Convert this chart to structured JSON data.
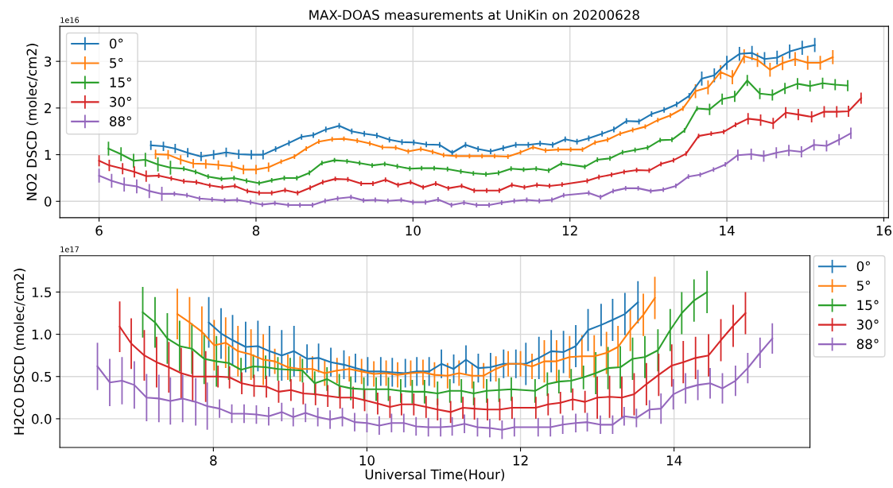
{
  "chart_data": [
    {
      "type": "line",
      "title": "MAX-DOAS measurements at UniKin on 20200628",
      "ylabel": "NO2 DSCD (molec/cm2)",
      "annotations": [
        "1e16"
      ],
      "xlim": [
        5.5,
        16.06
      ],
      "xticks": [
        6,
        8,
        10,
        12,
        14,
        16
      ],
      "ylim": [
        -0.35,
        3.75
      ],
      "yticks": [
        0,
        1,
        2,
        3
      ],
      "grid": true,
      "legend": "top left",
      "marker": "none",
      "line_style": "solid",
      "series": [
        {
          "name": "0°",
          "color": "#1f77b4",
          "x": [
            6.66,
            6.82,
            6.97,
            7.13,
            7.3,
            7.46,
            7.62,
            7.78,
            7.94,
            8.09,
            8.25,
            8.42,
            8.58,
            8.73,
            8.89,
            9.06,
            9.22,
            9.38,
            9.54,
            9.7,
            9.86,
            10.01,
            10.17,
            10.34,
            10.5,
            10.67,
            10.83,
            10.99,
            11.15,
            11.31,
            11.47,
            11.62,
            11.78,
            11.94,
            12.09,
            12.24,
            12.41,
            12.56,
            12.72,
            12.88,
            13.04,
            13.2,
            13.36,
            13.52,
            13.68,
            13.84,
            14.0,
            14.16,
            14.32,
            14.48,
            14.64,
            14.8,
            14.96,
            15.12
          ],
          "values": [
            1.2,
            1.18,
            1.13,
            1.04,
            0.96,
            1.0,
            1.05,
            1.01,
            1.0,
            1.0,
            1.12,
            1.25,
            1.38,
            1.42,
            1.54,
            1.62,
            1.5,
            1.45,
            1.41,
            1.32,
            1.27,
            1.26,
            1.22,
            1.21,
            1.04,
            1.21,
            1.12,
            1.07,
            1.14,
            1.21,
            1.21,
            1.24,
            1.21,
            1.33,
            1.28,
            1.35,
            1.45,
            1.54,
            1.72,
            1.71,
            1.87,
            1.96,
            2.08,
            2.26,
            2.63,
            2.7,
            2.97,
            3.16,
            3.18,
            3.05,
            3.08,
            3.21,
            3.29,
            3.35
          ],
          "errors": [
            0.1,
            0.1,
            0.1,
            0.1,
            0.1,
            0.1,
            0.1,
            0.1,
            0.1,
            0.1,
            0.06,
            0.06,
            0.06,
            0.06,
            0.06,
            0.06,
            0.06,
            0.06,
            0.06,
            0.06,
            0.06,
            0.06,
            0.06,
            0.06,
            0.06,
            0.06,
            0.06,
            0.06,
            0.06,
            0.06,
            0.06,
            0.06,
            0.06,
            0.06,
            0.06,
            0.06,
            0.06,
            0.06,
            0.06,
            0.06,
            0.06,
            0.06,
            0.06,
            0.06,
            0.15,
            0.15,
            0.15,
            0.15,
            0.15,
            0.15,
            0.15,
            0.15,
            0.15,
            0.15
          ]
        },
        {
          "name": "5°",
          "color": "#ff7f0e",
          "x": [
            6.72,
            6.88,
            7.04,
            7.2,
            7.36,
            7.52,
            7.69,
            7.84,
            8.0,
            8.16,
            8.32,
            8.49,
            8.64,
            8.8,
            8.97,
            9.12,
            9.29,
            9.45,
            9.61,
            9.78,
            9.94,
            10.1,
            10.25,
            10.39,
            10.55,
            10.72,
            10.88,
            11.04,
            11.21,
            11.37,
            11.53,
            11.69,
            11.85,
            12.01,
            12.16,
            12.32,
            12.48,
            12.64,
            12.8,
            12.96,
            13.12,
            13.28,
            13.44,
            13.6,
            13.76,
            13.92,
            14.07,
            14.22,
            14.39,
            14.55,
            14.71,
            14.87,
            15.03,
            15.19,
            15.35
          ],
          "values": [
            1.01,
            1.0,
            0.89,
            0.81,
            0.8,
            0.78,
            0.75,
            0.68,
            0.68,
            0.73,
            0.85,
            0.96,
            1.13,
            1.28,
            1.33,
            1.34,
            1.3,
            1.24,
            1.16,
            1.15,
            1.07,
            1.12,
            1.06,
            0.99,
            0.97,
            0.97,
            0.97,
            0.97,
            0.96,
            1.05,
            1.16,
            1.09,
            1.11,
            1.11,
            1.11,
            1.26,
            1.32,
            1.45,
            1.53,
            1.6,
            1.74,
            1.84,
            1.99,
            2.36,
            2.44,
            2.77,
            2.66,
            3.11,
            3.03,
            2.82,
            2.96,
            3.05,
            2.97,
            2.97,
            3.09
          ],
          "errors": [
            0.1,
            0.1,
            0.1,
            0.1,
            0.1,
            0.1,
            0.1,
            0.1,
            0.1,
            0.1,
            0.05,
            0.05,
            0.05,
            0.05,
            0.05,
            0.05,
            0.05,
            0.05,
            0.05,
            0.05,
            0.05,
            0.05,
            0.05,
            0.05,
            0.05,
            0.05,
            0.05,
            0.05,
            0.05,
            0.05,
            0.05,
            0.05,
            0.05,
            0.05,
            0.05,
            0.05,
            0.05,
            0.05,
            0.05,
            0.05,
            0.05,
            0.05,
            0.05,
            0.15,
            0.15,
            0.15,
            0.15,
            0.15,
            0.15,
            0.15,
            0.15,
            0.15,
            0.15,
            0.15,
            0.15
          ]
        },
        {
          "name": "15°",
          "color": "#2ca02c",
          "x": [
            6.12,
            6.28,
            6.44,
            6.59,
            6.75,
            6.91,
            7.08,
            7.23,
            7.39,
            7.56,
            7.72,
            7.88,
            8.04,
            8.2,
            8.36,
            8.52,
            8.68,
            8.84,
            9.0,
            9.16,
            9.32,
            9.48,
            9.64,
            9.8,
            9.96,
            10.11,
            10.27,
            10.44,
            10.61,
            10.77,
            10.93,
            11.09,
            11.25,
            11.41,
            11.57,
            11.73,
            11.89,
            12.19,
            12.35,
            12.51,
            12.67,
            12.83,
            12.99,
            13.15,
            13.3,
            13.46,
            13.62,
            13.78,
            13.94,
            14.1,
            14.26,
            14.42,
            14.58,
            14.74,
            14.9,
            15.06,
            15.22,
            15.38,
            15.54
          ],
          "values": [
            1.13,
            1.01,
            0.87,
            0.89,
            0.79,
            0.72,
            0.7,
            0.63,
            0.53,
            0.48,
            0.5,
            0.44,
            0.39,
            0.45,
            0.5,
            0.5,
            0.61,
            0.82,
            0.88,
            0.86,
            0.82,
            0.77,
            0.8,
            0.75,
            0.7,
            0.71,
            0.71,
            0.69,
            0.64,
            0.6,
            0.58,
            0.61,
            0.7,
            0.68,
            0.7,
            0.66,
            0.81,
            0.74,
            0.89,
            0.92,
            1.05,
            1.1,
            1.15,
            1.31,
            1.32,
            1.52,
            1.99,
            1.97,
            2.19,
            2.25,
            2.59,
            2.31,
            2.28,
            2.42,
            2.52,
            2.47,
            2.53,
            2.5,
            2.48
          ],
          "errors": [
            0.15,
            0.15,
            0.15,
            0.15,
            0.15,
            0.15,
            0.05,
            0.05,
            0.05,
            0.05,
            0.05,
            0.05,
            0.05,
            0.05,
            0.05,
            0.05,
            0.05,
            0.05,
            0.05,
            0.05,
            0.05,
            0.05,
            0.05,
            0.05,
            0.05,
            0.05,
            0.05,
            0.05,
            0.05,
            0.05,
            0.05,
            0.05,
            0.05,
            0.05,
            0.05,
            0.05,
            0.05,
            0.05,
            0.05,
            0.05,
            0.05,
            0.05,
            0.05,
            0.05,
            0.05,
            0.05,
            0.05,
            0.12,
            0.12,
            0.12,
            0.12,
            0.12,
            0.12,
            0.12,
            0.12,
            0.12,
            0.12,
            0.12,
            0.12
          ]
        },
        {
          "name": "30°",
          "color": "#d62728",
          "x": [
            6.0,
            6.13,
            6.3,
            6.45,
            6.6,
            6.76,
            6.92,
            7.08,
            7.24,
            7.41,
            7.57,
            7.73,
            7.89,
            8.04,
            8.2,
            8.37,
            8.53,
            8.69,
            8.85,
            9.01,
            9.17,
            9.34,
            9.49,
            9.65,
            9.81,
            9.97,
            10.13,
            10.29,
            10.45,
            10.62,
            10.78,
            10.94,
            11.1,
            11.26,
            11.42,
            11.58,
            11.74,
            11.9,
            12.22,
            12.37,
            12.53,
            12.69,
            12.85,
            13.01,
            13.16,
            13.32,
            13.48,
            13.64,
            13.8,
            13.96,
            14.11,
            14.27,
            14.43,
            14.59,
            14.75,
            14.91,
            15.08,
            15.24,
            15.4,
            15.55,
            15.71
          ],
          "values": [
            0.87,
            0.77,
            0.7,
            0.63,
            0.54,
            0.55,
            0.49,
            0.43,
            0.41,
            0.34,
            0.3,
            0.33,
            0.22,
            0.18,
            0.18,
            0.24,
            0.18,
            0.29,
            0.41,
            0.48,
            0.47,
            0.38,
            0.38,
            0.46,
            0.35,
            0.41,
            0.3,
            0.38,
            0.28,
            0.33,
            0.23,
            0.23,
            0.23,
            0.35,
            0.3,
            0.35,
            0.33,
            0.36,
            0.44,
            0.52,
            0.57,
            0.63,
            0.67,
            0.66,
            0.8,
            0.88,
            1.02,
            1.4,
            1.45,
            1.49,
            1.64,
            1.77,
            1.74,
            1.67,
            1.9,
            1.86,
            1.81,
            1.92,
            1.92,
            1.93,
            2.21
          ],
          "errors": [
            0.12,
            0.12,
            0.12,
            0.12,
            0.12,
            0.05,
            0.05,
            0.05,
            0.05,
            0.05,
            0.05,
            0.05,
            0.05,
            0.05,
            0.05,
            0.05,
            0.05,
            0.05,
            0.05,
            0.05,
            0.05,
            0.05,
            0.05,
            0.05,
            0.05,
            0.05,
            0.05,
            0.05,
            0.05,
            0.05,
            0.05,
            0.05,
            0.05,
            0.05,
            0.05,
            0.05,
            0.05,
            0.05,
            0.05,
            0.05,
            0.05,
            0.05,
            0.05,
            0.05,
            0.05,
            0.05,
            0.05,
            0.05,
            0.05,
            0.05,
            0.05,
            0.12,
            0.12,
            0.12,
            0.12,
            0.12,
            0.12,
            0.12,
            0.12,
            0.12,
            0.12
          ]
        },
        {
          "name": "88°",
          "color": "#9467bd",
          "x": [
            6.0,
            6.16,
            6.32,
            6.48,
            6.64,
            6.8,
            6.96,
            7.12,
            7.28,
            7.44,
            7.6,
            7.76,
            7.93,
            8.08,
            8.24,
            8.41,
            8.56,
            8.72,
            8.88,
            9.04,
            9.21,
            9.37,
            9.52,
            9.68,
            9.85,
            10.0,
            10.16,
            10.32,
            10.49,
            10.65,
            10.81,
            10.97,
            11.13,
            11.29,
            11.45,
            11.61,
            11.77,
            11.92,
            12.24,
            12.39,
            12.55,
            12.71,
            12.87,
            13.03,
            13.19,
            13.35,
            13.51,
            13.66,
            13.83,
            13.98,
            14.14,
            14.31,
            14.47,
            14.63,
            14.79,
            14.95,
            15.11,
            15.27,
            15.43,
            15.58
          ],
          "values": [
            0.55,
            0.44,
            0.36,
            0.32,
            0.22,
            0.16,
            0.16,
            0.13,
            0.06,
            0.04,
            0.02,
            0.03,
            -0.02,
            -0.07,
            -0.04,
            -0.08,
            -0.08,
            -0.08,
            0.01,
            0.06,
            0.09,
            0.02,
            0.03,
            0.01,
            0.03,
            -0.02,
            -0.02,
            0.04,
            -0.08,
            -0.03,
            -0.08,
            -0.08,
            -0.03,
            0.01,
            0.03,
            0.01,
            0.03,
            0.13,
            0.18,
            0.09,
            0.22,
            0.28,
            0.28,
            0.22,
            0.25,
            0.33,
            0.53,
            0.57,
            0.68,
            0.79,
            0.99,
            1.01,
            0.97,
            1.04,
            1.09,
            1.06,
            1.21,
            1.19,
            1.32,
            1.46
          ],
          "errors": [
            0.15,
            0.15,
            0.15,
            0.15,
            0.15,
            0.15,
            0.05,
            0.05,
            0.05,
            0.05,
            0.05,
            0.05,
            0.05,
            0.05,
            0.05,
            0.05,
            0.05,
            0.05,
            0.05,
            0.05,
            0.05,
            0.05,
            0.05,
            0.05,
            0.05,
            0.05,
            0.05,
            0.05,
            0.05,
            0.05,
            0.05,
            0.05,
            0.05,
            0.05,
            0.05,
            0.05,
            0.05,
            0.05,
            0.05,
            0.05,
            0.05,
            0.05,
            0.05,
            0.05,
            0.05,
            0.05,
            0.05,
            0.05,
            0.05,
            0.05,
            0.12,
            0.12,
            0.12,
            0.12,
            0.12,
            0.12,
            0.12,
            0.12,
            0.12,
            0.12
          ]
        }
      ]
    },
    {
      "type": "line",
      "xlabel": "Universal Time(Hour)",
      "ylabel": "H2CO DSCD (molec/cm2)",
      "annotations": [
        "1e17"
      ],
      "xlim": [
        6.0,
        15.77
      ],
      "xticks": [
        8,
        10,
        12,
        14
      ],
      "ylim": [
        -0.34,
        1.93
      ],
      "yticks": [
        {
          "value": 0,
          "label": "0.0"
        },
        0.5,
        {
          "value": 1,
          "label": "1.0"
        },
        1.5
      ],
      "grid": true,
      "legend": "top right",
      "marker": "none",
      "line_style": "solid",
      "series": [
        {
          "name": "0°",
          "color": "#1f77b4",
          "x": [
            7.94,
            8.1,
            8.25,
            8.42,
            8.58,
            8.73,
            8.89,
            9.05,
            9.22,
            9.37,
            9.53,
            9.7,
            9.85,
            10.01,
            10.18,
            10.33,
            10.5,
            10.65,
            10.81,
            10.97,
            11.13,
            11.29,
            11.45,
            11.61,
            11.78,
            11.94,
            12.07,
            12.24,
            12.4,
            12.56,
            12.72,
            12.88,
            13.05,
            13.2,
            13.36,
            13.53
          ],
          "values": [
            1.14,
            1.01,
            0.93,
            0.85,
            0.86,
            0.8,
            0.75,
            0.8,
            0.71,
            0.72,
            0.67,
            0.64,
            0.6,
            0.56,
            0.56,
            0.55,
            0.54,
            0.56,
            0.56,
            0.65,
            0.59,
            0.7,
            0.6,
            0.61,
            0.65,
            0.65,
            0.65,
            0.72,
            0.8,
            0.79,
            0.86,
            1.05,
            1.11,
            1.17,
            1.24,
            1.38
          ],
          "errors": [
            0.3,
            0.3,
            0.3,
            0.3,
            0.3,
            0.3,
            0.3,
            0.3,
            0.17,
            0.17,
            0.17,
            0.17,
            0.17,
            0.17,
            0.17,
            0.17,
            0.17,
            0.17,
            0.17,
            0.17,
            0.17,
            0.17,
            0.17,
            0.17,
            0.17,
            0.17,
            0.25,
            0.25,
            0.25,
            0.25,
            0.25,
            0.25,
            0.25,
            0.25,
            0.25,
            0.25
          ]
        },
        {
          "name": "5°",
          "color": "#ff7f0e",
          "x": [
            7.53,
            7.69,
            7.85,
            8.01,
            8.16,
            8.32,
            8.49,
            8.65,
            8.8,
            8.97,
            9.13,
            9.29,
            9.45,
            9.61,
            9.77,
            9.93,
            10.09,
            10.25,
            10.4,
            10.57,
            10.73,
            10.88,
            11.05,
            11.2,
            11.37,
            11.52,
            11.68,
            11.84,
            12.0,
            12.15,
            12.31,
            12.47,
            12.64,
            12.8,
            12.96,
            13.12,
            13.27,
            13.43,
            13.6,
            13.75
          ],
          "values": [
            1.24,
            1.14,
            1.03,
            0.87,
            0.9,
            0.8,
            0.76,
            0.7,
            0.68,
            0.61,
            0.59,
            0.59,
            0.54,
            0.57,
            0.59,
            0.56,
            0.53,
            0.54,
            0.52,
            0.54,
            0.55,
            0.52,
            0.51,
            0.54,
            0.51,
            0.51,
            0.59,
            0.65,
            0.65,
            0.62,
            0.68,
            0.68,
            0.73,
            0.74,
            0.74,
            0.78,
            0.85,
            1.05,
            1.23,
            1.43
          ],
          "errors": [
            0.3,
            0.3,
            0.3,
            0.3,
            0.3,
            0.3,
            0.3,
            0.3,
            0.15,
            0.15,
            0.15,
            0.15,
            0.15,
            0.15,
            0.15,
            0.15,
            0.15,
            0.15,
            0.15,
            0.15,
            0.15,
            0.15,
            0.15,
            0.15,
            0.15,
            0.15,
            0.15,
            0.15,
            0.15,
            0.15,
            0.25,
            0.25,
            0.25,
            0.25,
            0.25,
            0.25,
            0.25,
            0.25,
            0.25,
            0.25
          ]
        },
        {
          "name": "15°",
          "color": "#2ca02c",
          "x": [
            7.08,
            7.24,
            7.4,
            7.56,
            7.72,
            7.88,
            8.04,
            8.2,
            8.36,
            8.52,
            8.68,
            8.84,
            9.0,
            9.16,
            9.32,
            9.48,
            9.64,
            9.79,
            9.96,
            10.12,
            10.28,
            10.44,
            10.59,
            10.75,
            10.92,
            11.08,
            11.23,
            11.39,
            11.56,
            11.72,
            11.88,
            12.19,
            12.35,
            12.5,
            12.66,
            12.82,
            12.98,
            13.14,
            13.3,
            13.46,
            13.62,
            13.79,
            13.95,
            14.1,
            14.26,
            14.43
          ],
          "values": [
            1.26,
            1.14,
            0.95,
            0.86,
            0.83,
            0.71,
            0.68,
            0.66,
            0.58,
            0.62,
            0.61,
            0.59,
            0.58,
            0.57,
            0.42,
            0.47,
            0.39,
            0.36,
            0.35,
            0.35,
            0.35,
            0.33,
            0.32,
            0.32,
            0.3,
            0.33,
            0.33,
            0.3,
            0.33,
            0.34,
            0.35,
            0.33,
            0.41,
            0.44,
            0.45,
            0.49,
            0.54,
            0.6,
            0.61,
            0.71,
            0.73,
            0.81,
            1.05,
            1.25,
            1.4,
            1.5
          ],
          "errors": [
            0.3,
            0.3,
            0.3,
            0.3,
            0.3,
            0.3,
            0.3,
            0.2,
            0.14,
            0.14,
            0.14,
            0.14,
            0.14,
            0.14,
            0.14,
            0.14,
            0.14,
            0.14,
            0.14,
            0.14,
            0.14,
            0.14,
            0.14,
            0.14,
            0.14,
            0.14,
            0.14,
            0.14,
            0.14,
            0.14,
            0.14,
            0.14,
            0.14,
            0.14,
            0.14,
            0.14,
            0.25,
            0.25,
            0.25,
            0.25,
            0.25,
            0.25,
            0.25,
            0.25,
            0.25,
            0.25
          ]
        },
        {
          "name": "30°",
          "color": "#d62728",
          "x": [
            6.78,
            6.93,
            7.1,
            7.26,
            7.42,
            7.58,
            7.73,
            7.9,
            8.06,
            8.21,
            8.37,
            8.53,
            8.69,
            8.85,
            9.01,
            9.17,
            9.33,
            9.49,
            9.65,
            9.82,
            9.97,
            10.14,
            10.3,
            10.45,
            10.61,
            10.77,
            10.92,
            11.09,
            11.25,
            11.4,
            11.57,
            11.73,
            11.89,
            12.2,
            12.36,
            12.52,
            12.68,
            12.84,
            13.0,
            13.16,
            13.32,
            13.48,
            13.64,
            13.8,
            13.97,
            14.12,
            14.28,
            14.45,
            14.61,
            14.77,
            14.93
          ],
          "values": [
            1.09,
            0.89,
            0.75,
            0.67,
            0.61,
            0.54,
            0.5,
            0.5,
            0.5,
            0.49,
            0.42,
            0.39,
            0.38,
            0.32,
            0.34,
            0.3,
            0.29,
            0.27,
            0.25,
            0.25,
            0.22,
            0.18,
            0.14,
            0.17,
            0.17,
            0.14,
            0.11,
            0.08,
            0.13,
            0.12,
            0.11,
            0.11,
            0.13,
            0.13,
            0.17,
            0.19,
            0.23,
            0.2,
            0.25,
            0.26,
            0.25,
            0.29,
            0.41,
            0.52,
            0.63,
            0.67,
            0.72,
            0.75,
            0.93,
            1.1,
            1.25
          ],
          "errors": [
            0.3,
            0.3,
            0.3,
            0.3,
            0.3,
            0.3,
            0.3,
            0.3,
            0.13,
            0.13,
            0.13,
            0.13,
            0.13,
            0.13,
            0.13,
            0.13,
            0.13,
            0.13,
            0.13,
            0.13,
            0.13,
            0.13,
            0.13,
            0.13,
            0.13,
            0.13,
            0.13,
            0.13,
            0.13,
            0.13,
            0.13,
            0.13,
            0.13,
            0.13,
            0.13,
            0.13,
            0.13,
            0.13,
            0.25,
            0.25,
            0.25,
            0.25,
            0.25,
            0.25,
            0.25,
            0.25,
            0.25,
            0.25,
            0.25,
            0.25,
            0.25
          ]
        },
        {
          "name": "88°",
          "color": "#9467bd",
          "x": [
            6.49,
            6.65,
            6.81,
            6.97,
            7.13,
            7.29,
            7.44,
            7.6,
            7.77,
            7.92,
            8.08,
            8.24,
            8.4,
            8.56,
            8.72,
            8.89,
            9.04,
            9.2,
            9.36,
            9.52,
            9.68,
            9.84,
            10.0,
            10.16,
            10.32,
            10.48,
            10.64,
            10.8,
            10.96,
            11.11,
            11.27,
            11.44,
            11.6,
            11.76,
            11.92,
            12.23,
            12.39,
            12.55,
            12.72,
            12.87,
            13.04,
            13.2,
            13.35,
            13.51,
            13.68,
            13.83,
            13.99,
            14.15,
            14.31,
            14.47,
            14.63,
            14.8,
            14.96,
            15.12,
            15.28
          ],
          "values": [
            0.62,
            0.43,
            0.45,
            0.4,
            0.25,
            0.24,
            0.21,
            0.24,
            0.2,
            0.15,
            0.12,
            0.06,
            0.06,
            0.05,
            0.03,
            0.08,
            0.02,
            0.07,
            0.02,
            -0.01,
            0.02,
            -0.04,
            -0.05,
            -0.08,
            -0.05,
            -0.05,
            -0.09,
            -0.1,
            -0.1,
            -0.09,
            -0.06,
            -0.1,
            -0.11,
            -0.13,
            -0.1,
            -0.1,
            -0.1,
            -0.07,
            -0.05,
            -0.04,
            -0.07,
            -0.07,
            0.03,
            0.01,
            0.11,
            0.12,
            0.29,
            0.36,
            0.4,
            0.42,
            0.36,
            0.45,
            0.6,
            0.78,
            0.95
          ],
          "errors": [
            0.28,
            0.28,
            0.28,
            0.28,
            0.28,
            0.28,
            0.28,
            0.28,
            0.28,
            0.28,
            0.11,
            0.11,
            0.11,
            0.11,
            0.11,
            0.11,
            0.11,
            0.11,
            0.11,
            0.11,
            0.11,
            0.11,
            0.11,
            0.11,
            0.11,
            0.11,
            0.11,
            0.11,
            0.11,
            0.11,
            0.11,
            0.11,
            0.11,
            0.11,
            0.11,
            0.11,
            0.11,
            0.11,
            0.11,
            0.11,
            0.11,
            0.11,
            0.11,
            0.11,
            0.11,
            0.18,
            0.18,
            0.18,
            0.18,
            0.18,
            0.18,
            0.18,
            0.18,
            0.18,
            0.18
          ]
        }
      ]
    }
  ]
}
